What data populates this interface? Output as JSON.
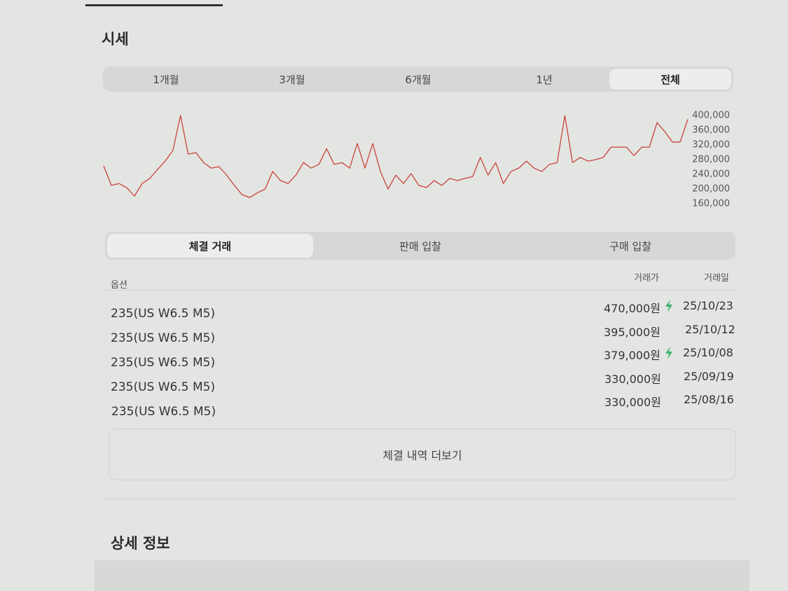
{
  "section_title": "시세",
  "period_tabs": {
    "items": [
      "1개월",
      "3개월",
      "6개월",
      "1년",
      "전체"
    ],
    "active": 4
  },
  "chart_data": {
    "type": "line",
    "color": "#c9433b",
    "values": [
      263000,
      210000,
      215000,
      204000,
      181000,
      215000,
      229000,
      253000,
      276000,
      305000,
      400000,
      295000,
      299000,
      272000,
      257000,
      261000,
      238000,
      210000,
      185000,
      177000,
      190000,
      200000,
      248000,
      223000,
      215000,
      238000,
      272000,
      257000,
      267000,
      310000,
      267000,
      272000,
      257000,
      324000,
      257000,
      324000,
      248000,
      200000,
      238000,
      215000,
      242000,
      210000,
      204000,
      223000,
      210000,
      229000,
      223000,
      229000,
      234000,
      286000,
      238000,
      272000,
      215000,
      248000,
      257000,
      276000,
      257000,
      248000,
      267000,
      272000,
      400000,
      272000,
      286000,
      276000,
      280000,
      286000,
      314000,
      314000,
      314000,
      291000,
      314000,
      314000,
      381000,
      356000,
      328000,
      328000,
      390000
    ],
    "ylim": [
      160000,
      400000
    ],
    "yticks": [
      {
        "value": 400000,
        "label": "400,000"
      },
      {
        "value": 360000,
        "label": "360,000"
      },
      {
        "value": 320000,
        "label": "320,000"
      },
      {
        "value": 280000,
        "label": "280,000"
      },
      {
        "value": 240000,
        "label": "240,000"
      },
      {
        "value": 200000,
        "label": "200,000"
      },
      {
        "value": 160000,
        "label": "160,000"
      }
    ]
  },
  "trade_tabs": {
    "items": [
      "체결 거래",
      "판매 입찰",
      "구매 입찰"
    ],
    "active": 0
  },
  "table": {
    "columns": [
      "옵션",
      "거래가",
      "거래일"
    ],
    "rows": [
      [
        "235(US W6.5 M5)",
        "470,000원",
        "25/10/23"
      ],
      [
        "235(US W6.5 M5)",
        "395,000원",
        "25/10/12"
      ],
      [
        "235(US W6.5 M5)",
        "379,000원",
        "25/10/08"
      ],
      [
        "235(US W6.5 M5)",
        "330,000원",
        "25/09/19"
      ],
      [
        "235(US W6.5 M5)",
        "330,000원",
        "25/08/16"
      ]
    ]
  },
  "more_button": "체결 내역 더보기",
  "detail_title": "상세 정보"
}
